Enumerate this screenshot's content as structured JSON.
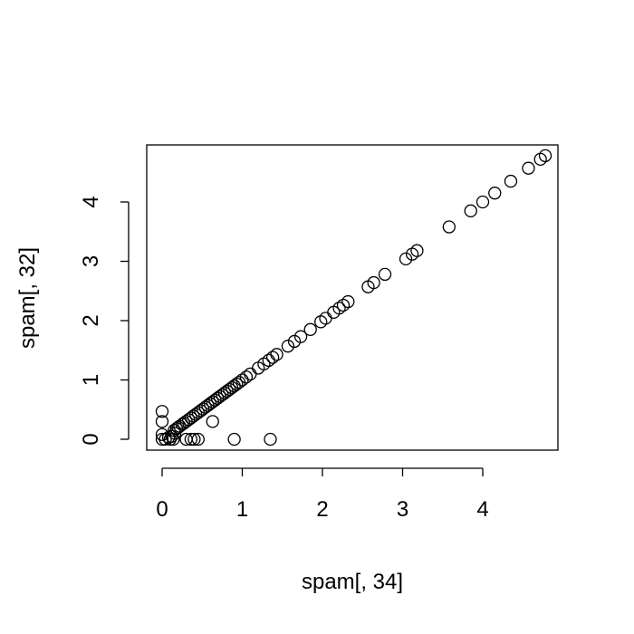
{
  "chart_data": {
    "type": "scatter",
    "title": "",
    "xlabel": "spam[, 34]",
    "ylabel": "spam[, 32]",
    "xlim": [
      -0.2,
      4.9
    ],
    "ylim": [
      -0.2,
      4.9
    ],
    "xticks": [
      0,
      1,
      2,
      3,
      4
    ],
    "yticks": [
      0,
      1,
      2,
      3,
      4
    ],
    "xtick_labels": [
      "0",
      "1",
      "2",
      "3",
      "4"
    ],
    "ytick_labels": [
      "0",
      "1",
      "2",
      "3",
      "4"
    ],
    "grid": false,
    "legend": "none",
    "point_color": "#000000",
    "points": [
      {
        "x": 0,
        "y": 0
      },
      {
        "x": 0,
        "y": 0.08
      },
      {
        "x": 0,
        "y": 0.3
      },
      {
        "x": 0,
        "y": 0.47
      },
      {
        "x": 0.04,
        "y": 0
      },
      {
        "x": 0.08,
        "y": 0.03
      },
      {
        "x": 0.1,
        "y": 0
      },
      {
        "x": 0.12,
        "y": 0.05
      },
      {
        "x": 0.14,
        "y": 0
      },
      {
        "x": 0.16,
        "y": 0.1
      },
      {
        "x": 0.3,
        "y": 0
      },
      {
        "x": 0.36,
        "y": 0
      },
      {
        "x": 0.4,
        "y": 0
      },
      {
        "x": 0.45,
        "y": 0
      },
      {
        "x": 0.63,
        "y": 0.3
      },
      {
        "x": 0.9,
        "y": 0
      },
      {
        "x": 1.35,
        "y": 0
      },
      {
        "x": 0.15,
        "y": 0.15
      },
      {
        "x": 0.18,
        "y": 0.18
      },
      {
        "x": 0.2,
        "y": 0.2
      },
      {
        "x": 0.22,
        "y": 0.22
      },
      {
        "x": 0.25,
        "y": 0.25
      },
      {
        "x": 0.27,
        "y": 0.27
      },
      {
        "x": 0.3,
        "y": 0.3
      },
      {
        "x": 0.33,
        "y": 0.33
      },
      {
        "x": 0.36,
        "y": 0.36
      },
      {
        "x": 0.39,
        "y": 0.39
      },
      {
        "x": 0.42,
        "y": 0.42
      },
      {
        "x": 0.45,
        "y": 0.45
      },
      {
        "x": 0.48,
        "y": 0.48
      },
      {
        "x": 0.51,
        "y": 0.51
      },
      {
        "x": 0.54,
        "y": 0.54
      },
      {
        "x": 0.57,
        "y": 0.57
      },
      {
        "x": 0.6,
        "y": 0.6
      },
      {
        "x": 0.63,
        "y": 0.63
      },
      {
        "x": 0.66,
        "y": 0.66
      },
      {
        "x": 0.69,
        "y": 0.69
      },
      {
        "x": 0.72,
        "y": 0.72
      },
      {
        "x": 0.75,
        "y": 0.75
      },
      {
        "x": 0.78,
        "y": 0.78
      },
      {
        "x": 0.81,
        "y": 0.81
      },
      {
        "x": 0.84,
        "y": 0.84
      },
      {
        "x": 0.87,
        "y": 0.87
      },
      {
        "x": 0.9,
        "y": 0.9
      },
      {
        "x": 0.93,
        "y": 0.93
      },
      {
        "x": 0.96,
        "y": 0.96
      },
      {
        "x": 1.0,
        "y": 1.0
      },
      {
        "x": 1.05,
        "y": 1.05
      },
      {
        "x": 1.1,
        "y": 1.1
      },
      {
        "x": 1.2,
        "y": 1.2
      },
      {
        "x": 1.27,
        "y": 1.27
      },
      {
        "x": 1.33,
        "y": 1.33
      },
      {
        "x": 1.38,
        "y": 1.38
      },
      {
        "x": 1.43,
        "y": 1.43
      },
      {
        "x": 1.57,
        "y": 1.57
      },
      {
        "x": 1.65,
        "y": 1.65
      },
      {
        "x": 1.73,
        "y": 1.73
      },
      {
        "x": 1.85,
        "y": 1.85
      },
      {
        "x": 1.98,
        "y": 1.98
      },
      {
        "x": 2.04,
        "y": 2.04
      },
      {
        "x": 2.14,
        "y": 2.14
      },
      {
        "x": 2.21,
        "y": 2.21
      },
      {
        "x": 2.26,
        "y": 2.26
      },
      {
        "x": 2.32,
        "y": 2.32
      },
      {
        "x": 2.57,
        "y": 2.57
      },
      {
        "x": 2.64,
        "y": 2.64
      },
      {
        "x": 2.78,
        "y": 2.78
      },
      {
        "x": 3.04,
        "y": 3.04
      },
      {
        "x": 3.12,
        "y": 3.12
      },
      {
        "x": 3.18,
        "y": 3.18
      },
      {
        "x": 3.58,
        "y": 3.58
      },
      {
        "x": 3.85,
        "y": 3.85
      },
      {
        "x": 4.0,
        "y": 4.0
      },
      {
        "x": 4.15,
        "y": 4.15
      },
      {
        "x": 4.35,
        "y": 4.35
      },
      {
        "x": 4.57,
        "y": 4.57
      },
      {
        "x": 4.72,
        "y": 4.72
      },
      {
        "x": 4.78,
        "y": 4.78
      }
    ]
  }
}
